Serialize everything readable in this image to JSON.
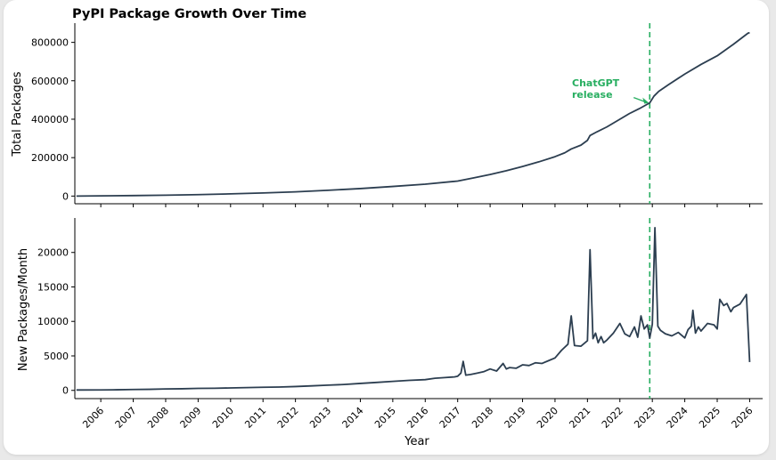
{
  "colors": {
    "line": "#2c3e50",
    "accent": "#27ae60",
    "axis": "#000000"
  },
  "chart_data": [
    {
      "type": "line",
      "title": "PyPI Package Growth Over Time",
      "xlabel": "",
      "ylabel": "Total Packages",
      "xlim": [
        2005.2,
        2026.4
      ],
      "ylim": [
        -40000,
        900000
      ],
      "yticks": [
        0,
        200000,
        400000,
        600000,
        800000
      ],
      "ytick_labels": [
        "0",
        "200000",
        "400000",
        "600000",
        "800000"
      ],
      "series": [
        {
          "name": "Total Packages",
          "x": [
            2005.25,
            2006,
            2007,
            2008,
            2009,
            2010,
            2011,
            2012,
            2013,
            2014,
            2015,
            2016,
            2017,
            2017.5,
            2018,
            2018.5,
            2019,
            2019.5,
            2020,
            2020.3,
            2020.5,
            2020.8,
            2021,
            2021.08,
            2021.3,
            2021.6,
            2022,
            2022.3,
            2022.6,
            2022.92,
            2023.05,
            2023.2,
            2023.5,
            2024,
            2024.5,
            2025,
            2025.5,
            2025.95,
            2026.0
          ],
          "y": [
            0,
            1000,
            2500,
            4500,
            7500,
            11500,
            16000,
            22000,
            30000,
            39000,
            50000,
            62000,
            78000,
            95000,
            112000,
            132000,
            154000,
            178000,
            205000,
            225000,
            245000,
            265000,
            290000,
            315000,
            335000,
            360000,
            400000,
            430000,
            455000,
            485000,
            520000,
            545000,
            580000,
            635000,
            685000,
            730000,
            790000,
            848000,
            850000
          ]
        }
      ],
      "annotations": [
        {
          "text_line1": "ChatGPT",
          "text_line2": "release",
          "x": 2022.92,
          "y": 485000,
          "text_x": 2020.7,
          "text_y": 520000
        }
      ],
      "vline": {
        "x": 2022.92,
        "style": "dashed"
      }
    },
    {
      "type": "line",
      "title": "",
      "xlabel": "Year",
      "ylabel": "New Packages/Month",
      "xlim": [
        2005.2,
        2026.4
      ],
      "ylim": [
        -1200,
        25000
      ],
      "xticks": [
        2006,
        2007,
        2008,
        2009,
        2010,
        2011,
        2012,
        2013,
        2014,
        2015,
        2016,
        2017,
        2018,
        2019,
        2020,
        2021,
        2022,
        2023,
        2024,
        2025,
        2026
      ],
      "xtick_labels": [
        "2006",
        "2007",
        "2008",
        "2009",
        "2010",
        "2011",
        "2012",
        "2013",
        "2014",
        "2015",
        "2016",
        "2017",
        "2018",
        "2019",
        "2020",
        "2021",
        "2022",
        "2023",
        "2024",
        "2025",
        "2026"
      ],
      "yticks": [
        0,
        5000,
        10000,
        15000,
        20000
      ],
      "ytick_labels": [
        "0",
        "5000",
        "10000",
        "15000",
        "20000"
      ],
      "series": [
        {
          "name": "New Packages/Month",
          "x": [
            2005.25,
            2006,
            2006.5,
            2007,
            2007.5,
            2008,
            2008.5,
            2009,
            2009.5,
            2010,
            2010.5,
            2011,
            2011.5,
            2012,
            2012.5,
            2013,
            2013.5,
            2014,
            2014.5,
            2015,
            2015.5,
            2016,
            2016.3,
            2016.6,
            2016.9,
            2017.0,
            2017.1,
            2017.17,
            2017.25,
            2017.4,
            2017.6,
            2017.8,
            2018.0,
            2018.2,
            2018.4,
            2018.5,
            2018.6,
            2018.8,
            2019.0,
            2019.2,
            2019.4,
            2019.6,
            2019.8,
            2020.0,
            2020.2,
            2020.4,
            2020.5,
            2020.6,
            2020.8,
            2021.0,
            2021.08,
            2021.17,
            2021.25,
            2021.33,
            2021.42,
            2021.5,
            2021.6,
            2021.8,
            2022.0,
            2022.15,
            2022.3,
            2022.45,
            2022.55,
            2022.65,
            2022.75,
            2022.85,
            2022.92,
            2023.0,
            2023.08,
            2023.17,
            2023.25,
            2023.4,
            2023.6,
            2023.8,
            2024.0,
            2024.1,
            2024.2,
            2024.25,
            2024.33,
            2024.42,
            2024.5,
            2024.7,
            2024.9,
            2025.0,
            2025.08,
            2025.2,
            2025.3,
            2025.42,
            2025.5,
            2025.7,
            2025.9,
            2026.0
          ],
          "y": [
            50,
            60,
            80,
            120,
            150,
            200,
            230,
            280,
            300,
            350,
            400,
            450,
            480,
            550,
            650,
            750,
            850,
            1000,
            1150,
            1300,
            1450,
            1550,
            1750,
            1850,
            1950,
            2050,
            2500,
            4200,
            2200,
            2300,
            2500,
            2700,
            3100,
            2800,
            3900,
            3100,
            3300,
            3200,
            3700,
            3600,
            4000,
            3900,
            4300,
            4700,
            5800,
            6700,
            10800,
            6500,
            6400,
            7200,
            20400,
            7500,
            8300,
            6900,
            7800,
            6900,
            7300,
            8300,
            9700,
            8200,
            7800,
            9200,
            7700,
            10800,
            8900,
            9500,
            7600,
            9600,
            23600,
            9300,
            8700,
            8200,
            7900,
            8400,
            7600,
            8800,
            9300,
            11600,
            8300,
            9200,
            8600,
            9700,
            9500,
            8900,
            13200,
            12300,
            12600,
            11400,
            12000,
            12500,
            13900,
            4100
          ]
        }
      ],
      "vline": {
        "x": 2022.92,
        "style": "dashed"
      }
    }
  ]
}
